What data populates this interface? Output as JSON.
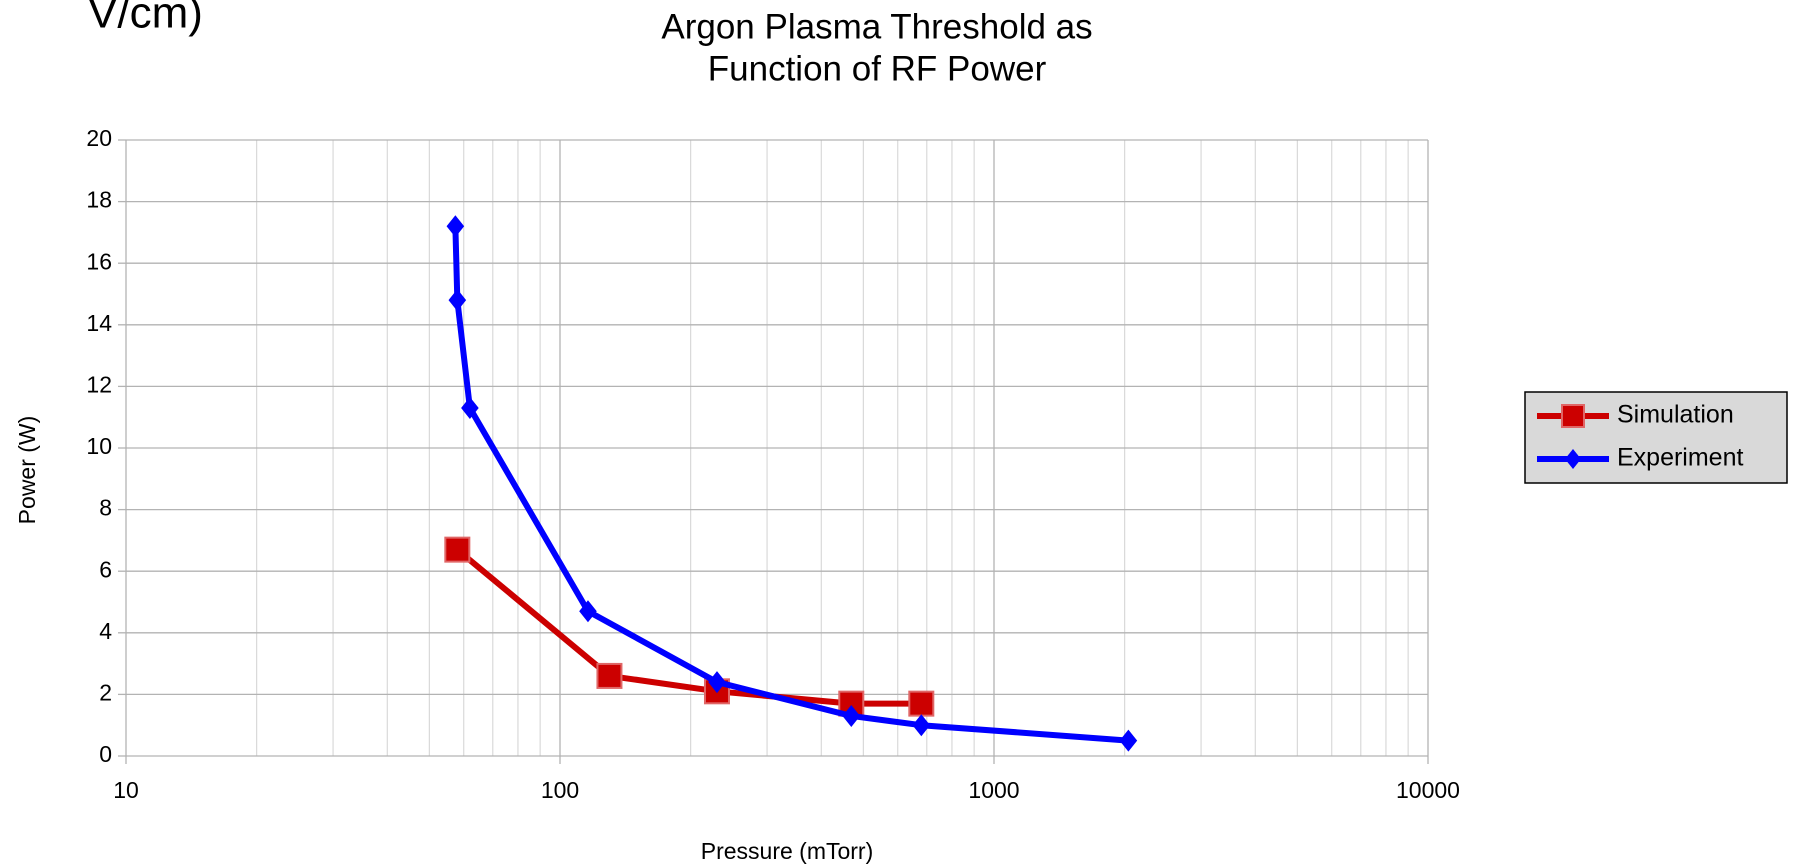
{
  "fragment": "V/cm)",
  "chart_data": {
    "type": "line",
    "title": [
      "Argon Plasma Threshold as",
      "Function of RF Power"
    ],
    "x_label": "Pressure (mTorr)",
    "y_label": "Power (W)",
    "xscale": "log",
    "xlim": [
      10,
      10000
    ],
    "xticks": [
      10,
      100,
      1000,
      10000
    ],
    "ylim": [
      0,
      20
    ],
    "yticks": [
      0,
      2,
      4,
      6,
      8,
      10,
      12,
      14,
      16,
      18,
      20
    ],
    "grid": true,
    "legend": "right",
    "series": [
      {
        "name": "Simulation",
        "color": "#cc0000",
        "marker": "square",
        "x": [
          58,
          130,
          230,
          469,
          680
        ],
        "values": [
          6.7,
          2.6,
          2.1,
          1.7,
          1.7
        ]
      },
      {
        "name": "Experiment",
        "color": "#0000ff",
        "marker": "diamond",
        "x": [
          57.4,
          58,
          62,
          116,
          230,
          469,
          680,
          2040
        ],
        "values": [
          17.2,
          14.8,
          11.3,
          4.7,
          2.4,
          1.3,
          1.0,
          0.5
        ]
      }
    ]
  }
}
